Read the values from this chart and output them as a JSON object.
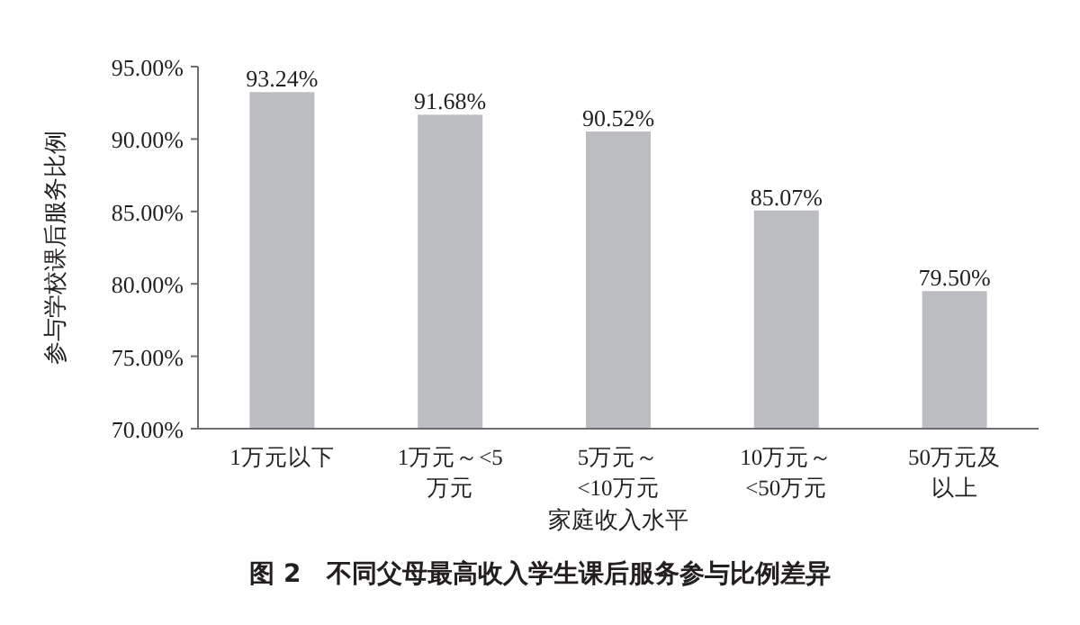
{
  "chart_data": {
    "type": "bar",
    "title": "图 2　不同父母最高收入学生课后服务参与比例差异",
    "xlabel": "家庭收入水平",
    "ylabel": "参与学校课后服务比例",
    "categories": [
      "1万元以下",
      "1万元～<5万元",
      "5万元～<10万元",
      "10万元～<50万元",
      "50万元及以上"
    ],
    "values": [
      93.24,
      91.68,
      90.52,
      85.07,
      79.5
    ],
    "value_labels": [
      "93.24%",
      "91.68%",
      "90.52%",
      "85.07%",
      "79.50%"
    ],
    "color": "#bcbdc0",
    "ylim": [
      70,
      95
    ],
    "yticks": [
      {
        "value": 70,
        "label": "70.00%"
      },
      {
        "value": 75,
        "label": "75.00%"
      },
      {
        "value": 80,
        "label": "80.00%"
      },
      {
        "value": 85,
        "label": "85.00%"
      },
      {
        "value": 90,
        "label": "90.00%"
      },
      {
        "value": 95,
        "label": "95.00%"
      }
    ],
    "grid": false
  }
}
